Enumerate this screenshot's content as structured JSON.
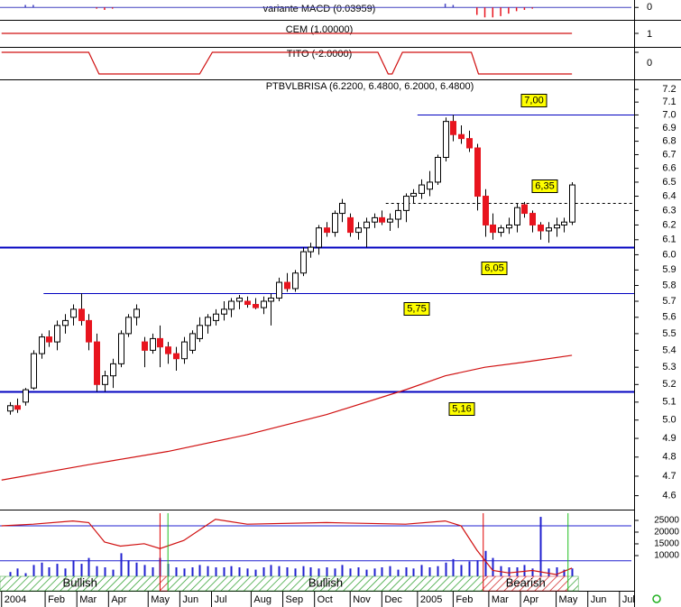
{
  "chart_data": {
    "type": "candlestick",
    "title": "PTBVLBRISA (6.2200, 6.4800, 6.2000, 6.4800)",
    "open": [
      5.05,
      5.08,
      5.1,
      5.18,
      5.38,
      5.48,
      5.45,
      5.55,
      5.6,
      5.65,
      5.58,
      5.45,
      5.2,
      5.25,
      5.32,
      5.5,
      5.6,
      5.45,
      5.4,
      5.47,
      5.42,
      5.38,
      5.35,
      5.4,
      5.47,
      5.55,
      5.58,
      5.62,
      5.65,
      5.7,
      5.7,
      5.68,
      5.66,
      5.7,
      5.72,
      5.82,
      5.78,
      5.88,
      6.02,
      6.05,
      6.18,
      6.15,
      6.28,
      6.25,
      6.15,
      6.18,
      6.22,
      6.25,
      6.22,
      6.24,
      6.3,
      6.4,
      6.42,
      6.45,
      6.5,
      6.68,
      6.95,
      6.85,
      6.82,
      6.75,
      6.4,
      6.2,
      6.15,
      6.18,
      6.2,
      6.34,
      6.28,
      6.2,
      6.16,
      6.18,
      6.2,
      6.22
    ],
    "high": [
      5.1,
      5.12,
      5.18,
      5.4,
      5.5,
      5.52,
      5.58,
      5.62,
      5.68,
      5.75,
      5.62,
      5.5,
      5.28,
      5.35,
      5.52,
      5.62,
      5.68,
      5.48,
      5.5,
      5.55,
      5.45,
      5.42,
      5.48,
      5.52,
      5.6,
      5.62,
      5.65,
      5.7,
      5.72,
      5.74,
      5.73,
      5.72,
      5.73,
      5.75,
      5.85,
      5.88,
      5.9,
      6.05,
      6.08,
      6.2,
      6.22,
      6.3,
      6.38,
      6.28,
      6.22,
      6.25,
      6.28,
      6.3,
      6.28,
      6.35,
      6.42,
      6.45,
      6.52,
      6.58,
      6.7,
      6.98,
      7.0,
      6.92,
      6.88,
      6.78,
      6.45,
      6.28,
      6.2,
      6.25,
      6.35,
      6.36,
      6.3,
      6.22,
      6.22,
      6.25,
      6.25,
      6.5
    ],
    "low": [
      5.03,
      5.04,
      5.08,
      5.17,
      5.35,
      5.42,
      5.4,
      5.5,
      5.55,
      5.55,
      5.4,
      5.16,
      5.16,
      5.18,
      5.3,
      5.48,
      5.55,
      5.3,
      5.38,
      5.3,
      5.32,
      5.28,
      5.32,
      5.38,
      5.45,
      5.5,
      5.55,
      5.58,
      5.6,
      5.65,
      5.66,
      5.65,
      5.62,
      5.55,
      5.7,
      5.76,
      5.76,
      5.86,
      5.98,
      6.0,
      6.12,
      6.12,
      6.22,
      6.12,
      6.1,
      6.05,
      6.18,
      6.2,
      6.16,
      6.18,
      6.22,
      6.35,
      6.38,
      6.4,
      6.48,
      6.65,
      6.8,
      6.78,
      6.72,
      6.3,
      6.12,
      6.1,
      6.12,
      6.14,
      6.15,
      6.25,
      6.15,
      6.1,
      6.08,
      6.12,
      6.15,
      6.2
    ],
    "close": [
      5.08,
      5.06,
      5.17,
      5.38,
      5.48,
      5.45,
      5.55,
      5.58,
      5.65,
      5.58,
      5.45,
      5.2,
      5.25,
      5.32,
      5.5,
      5.6,
      5.65,
      5.4,
      5.47,
      5.42,
      5.38,
      5.35,
      5.45,
      5.5,
      5.55,
      5.6,
      5.62,
      5.65,
      5.7,
      5.72,
      5.68,
      5.66,
      5.7,
      5.72,
      5.82,
      5.78,
      5.88,
      6.02,
      6.05,
      6.18,
      6.15,
      6.28,
      6.35,
      6.15,
      6.18,
      6.22,
      6.25,
      6.22,
      6.24,
      6.3,
      6.4,
      6.42,
      6.48,
      6.5,
      6.68,
      6.95,
      6.85,
      6.82,
      6.75,
      6.4,
      6.2,
      6.15,
      6.18,
      6.2,
      6.32,
      6.28,
      6.2,
      6.16,
      6.18,
      6.2,
      6.22,
      6.48
    ],
    "up_color": "#ffffff",
    "down_color": "#e8141e",
    "log_scale": true,
    "ylim": [
      4.53,
      7.28
    ],
    "yticks": [
      4.6,
      4.7,
      4.8,
      4.9,
      {
        "value": 5,
        "label": "5.0"
      },
      5.1,
      5.2,
      5.3,
      5.4,
      5.5,
      5.6,
      5.7,
      5.8,
      5.9,
      {
        "value": 6,
        "label": "6.0"
      },
      6.1,
      6.2,
      6.3,
      6.4,
      6.5,
      6.6,
      6.7,
      6.8,
      6.9,
      {
        "value": 7,
        "label": "7.0"
      },
      7.1,
      7.2
    ],
    "xlim": [
      -1.2,
      78.5
    ],
    "xticks": [
      {
        "value": -1,
        "label": "2004"
      },
      {
        "value": 4.5,
        "label": "Feb"
      },
      {
        "value": 8.5,
        "label": "Mar"
      },
      {
        "value": 12.5,
        "label": "Apr"
      },
      {
        "value": 17.5,
        "label": "May"
      },
      {
        "value": 21.5,
        "label": "Jun"
      },
      {
        "value": 25.5,
        "label": "Jul"
      },
      {
        "value": 30.5,
        "label": "Aug"
      },
      {
        "value": 34.5,
        "label": "Sep"
      },
      {
        "value": 38.5,
        "label": "Oct"
      },
      {
        "value": 43,
        "label": "Nov"
      },
      {
        "value": 47,
        "label": "Dec"
      },
      {
        "value": 51.5,
        "label": "2005"
      },
      {
        "value": 56,
        "label": "Feb"
      },
      {
        "value": 60.5,
        "label": "Mar"
      },
      {
        "value": 64.5,
        "label": "Apr"
      },
      {
        "value": 69,
        "label": "May"
      },
      {
        "value": 73,
        "label": "Jun"
      },
      {
        "value": 77,
        "label": "Jul"
      }
    ],
    "moving_average": {
      "color": "#d01010",
      "x": [
        -1,
        10,
        20,
        30,
        40,
        50,
        55,
        60,
        65,
        71
      ],
      "values": [
        4.68,
        4.76,
        4.83,
        4.92,
        5.03,
        5.17,
        5.25,
        5.3,
        5.33,
        5.37
      ]
    },
    "levels": [
      {
        "value": 7.0,
        "label": "7,00",
        "from": 51.5,
        "color": "#0000c0",
        "width": 1
      },
      {
        "value": 6.35,
        "label": "6,35",
        "from": 47.5,
        "color": "#000000",
        "width": 1,
        "dashed": true
      },
      {
        "value": 6.05,
        "label": "6,05",
        "from": -1.2,
        "color": "#0000c0",
        "width": 2
      },
      {
        "value": 5.75,
        "label": "5,75",
        "from": 4.3,
        "color": "#0000c0",
        "width": 1
      },
      {
        "value": 5.16,
        "label": "5,16",
        "from": -1.2,
        "color": "#0000c0",
        "width": 2
      }
    ],
    "label_color": "#ffff00",
    "macd": {
      "title": "variante MACD (0.03959)",
      "ylim": [
        -0.1,
        0.06
      ],
      "yticks": [
        0
      ],
      "pos_color": "#4040c0",
      "neg_color": "#e8141e",
      "x": [
        2,
        3,
        11,
        12,
        13,
        33,
        34,
        55,
        56,
        59,
        60,
        61,
        62,
        63,
        64,
        65,
        66
      ],
      "values": [
        0.02,
        0.02,
        -0.01,
        -0.02,
        -0.01,
        0.01,
        0.01,
        0.03,
        0.02,
        -0.06,
        -0.08,
        -0.08,
        -0.07,
        -0.05,
        -0.03,
        -0.02,
        -0.01
      ]
    },
    "cem": {
      "title": "CEM (1.00000)",
      "ylim": [
        0,
        2
      ],
      "yticks": [
        1
      ],
      "color": "#d01010",
      "x": [
        -1,
        71
      ],
      "values": [
        1,
        1
      ]
    },
    "tito": {
      "title": "TITO (-2.0000)",
      "ylim": [
        -2.5,
        0.5
      ],
      "yticks": [
        0
      ],
      "color": "#d01010",
      "x": [
        -1,
        10,
        11.3,
        24,
        25.6,
        46.5,
        47.8,
        48.3,
        49.6,
        58.3,
        59.2,
        71
      ],
      "values": [
        0,
        0,
        -2,
        -2,
        0,
        0,
        -2,
        -2,
        0,
        0,
        -2,
        -2
      ]
    },
    "volume": {
      "color": "#2020d0",
      "ylim": [
        0,
        29600
      ],
      "yticks": [
        10000,
        15000,
        20000,
        25000
      ],
      "values": [
        3000,
        4500,
        2500,
        6000,
        7000,
        5000,
        6500,
        4500,
        8000,
        6500,
        9000,
        5500,
        5000,
        4000,
        11000,
        8000,
        7000,
        6000,
        5000,
        9000,
        6500,
        5000,
        4500,
        5000,
        6000,
        5500,
        5000,
        5000,
        5500,
        5000,
        4500,
        4000,
        5000,
        6000,
        5500,
        5000,
        4500,
        5500,
        5000,
        4500,
        5000,
        4500,
        6000,
        4500,
        5000,
        4000,
        4500,
        5000,
        5500,
        4000,
        5000,
        4500,
        6000,
        5000,
        5500,
        7000,
        8500,
        6000,
        7500,
        8000,
        12000,
        9000,
        5500,
        5000,
        5000,
        6000,
        4500,
        26500,
        4500,
        5000,
        4000,
        4500
      ]
    },
    "oscillator": {
      "color": "#d01010",
      "ylim": [
        0,
        100
      ],
      "levels": [
        80,
        37
      ],
      "level_color": "#2020d0",
      "x": [
        -1,
        3,
        8,
        10,
        12,
        14,
        17,
        19,
        22,
        26,
        30,
        40,
        50,
        55,
        57,
        59,
        61,
        63,
        66,
        69,
        71
      ],
      "values": [
        80,
        82,
        86,
        84,
        60,
        55,
        58,
        52,
        62,
        88,
        82,
        84,
        82,
        86,
        80,
        50,
        25,
        22,
        25,
        20,
        28
      ]
    },
    "markers": [
      {
        "x": 19,
        "color": "#e00000"
      },
      {
        "x": 20,
        "color": "#20c020"
      },
      {
        "x": 59.8,
        "color": "#e00000"
      },
      {
        "x": 70.5,
        "color": "#20c020"
      }
    ],
    "signals": [
      {
        "from": -1.2,
        "to": 19,
        "color": "green",
        "label": "Bullish"
      },
      {
        "from": 19,
        "to": 20,
        "color": "red"
      },
      {
        "from": 20,
        "to": 59.8,
        "color": "green",
        "label": "Bullish"
      },
      {
        "from": 59.8,
        "to": 70.5,
        "color": "red",
        "label": "Bearish"
      },
      {
        "from": 70.5,
        "to": 71.8,
        "color": "green"
      }
    ]
  }
}
